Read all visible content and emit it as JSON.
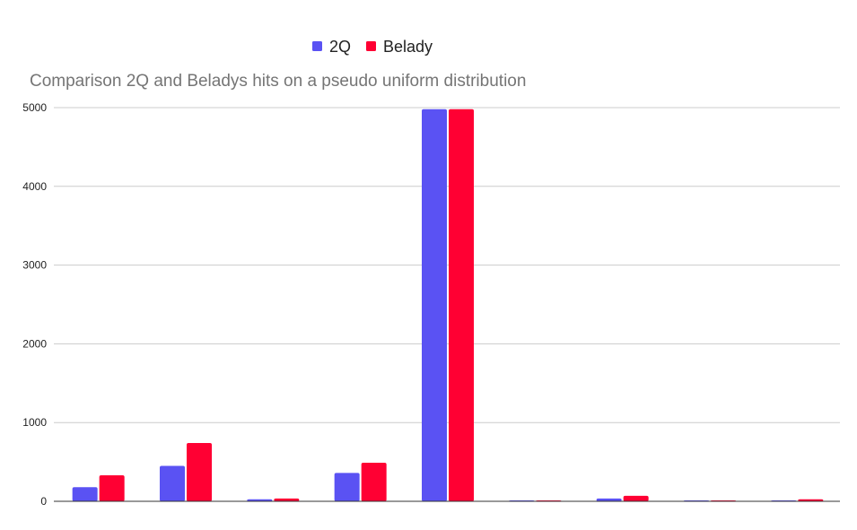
{
  "chart_data": {
    "type": "bar",
    "title": "Comparison 2Q and Beladys hits on a pseudo uniform distribution",
    "xlabel": "",
    "ylabel": "",
    "categories": [
      "",
      "",
      "",
      "",
      "",
      "",
      "",
      "",
      ""
    ],
    "series": [
      {
        "name": "2Q",
        "color": "#5a52f3",
        "values": [
          180,
          450,
          25,
          360,
          4980,
          10,
          35,
          10,
          12
        ]
      },
      {
        "name": "Belady",
        "color": "#ff0033",
        "values": [
          330,
          740,
          35,
          490,
          4980,
          12,
          70,
          12,
          25
        ]
      }
    ],
    "ylim": [
      0,
      5000
    ],
    "yticks": [
      "0",
      "1000",
      "2000",
      "3000",
      "4000",
      "5000"
    ],
    "grid": true,
    "legend_position": "top-center"
  }
}
